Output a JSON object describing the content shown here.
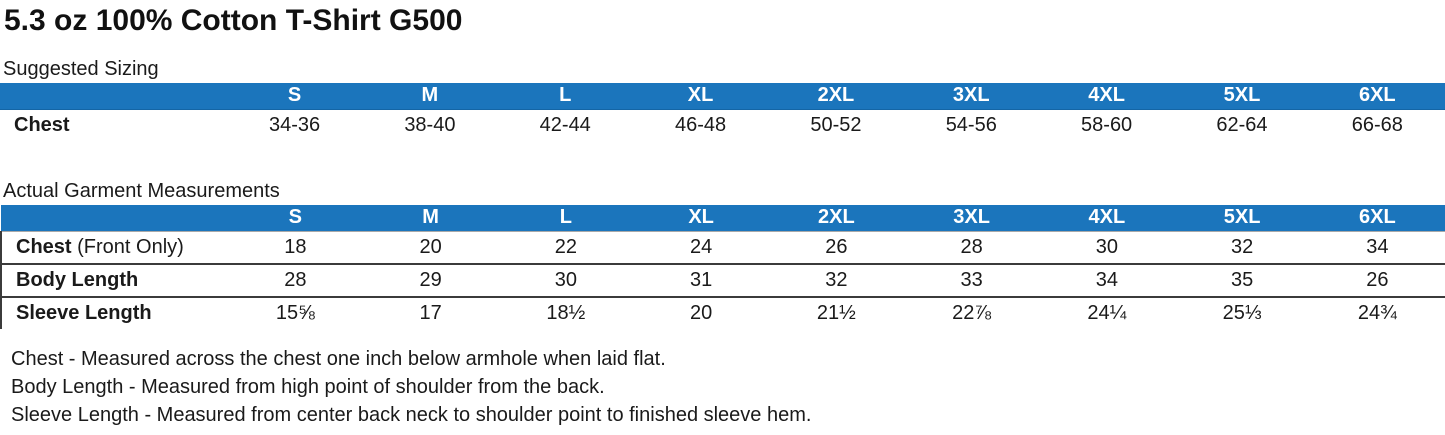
{
  "title": "5.3 oz 100% Cotton T-Shirt G500",
  "colors": {
    "header_background": "#1B75BC",
    "header_text": "#FFFFFF",
    "row_separator": "#3B3B3B",
    "body_text": "#1A1A1A"
  },
  "suggested_sizing": {
    "section_label": "Suggested Sizing",
    "sizes": [
      "S",
      "M",
      "L",
      "XL",
      "2XL",
      "3XL",
      "4XL",
      "5XL",
      "6XL"
    ],
    "rows": [
      {
        "label": "Chest",
        "label_suffix": "",
        "values": [
          "34-36",
          "38-40",
          "42-44",
          "46-48",
          "50-52",
          "54-56",
          "58-60",
          "62-64",
          "66-68"
        ]
      }
    ]
  },
  "actual_garment_measurements": {
    "section_label": "Actual Garment Measurements",
    "sizes": [
      "S",
      "M",
      "L",
      "XL",
      "2XL",
      "3XL",
      "4XL",
      "5XL",
      "6XL"
    ],
    "rows": [
      {
        "label": "Chest",
        "label_suffix": " (Front Only)",
        "values": [
          "18",
          "20",
          "22",
          "24",
          "26",
          "28",
          "30",
          "32",
          "34"
        ]
      },
      {
        "label": "Body Length",
        "label_suffix": "",
        "values": [
          "28",
          "29",
          "30",
          "31",
          "32",
          "33",
          "34",
          "35",
          "26"
        ]
      },
      {
        "label": "Sleeve Length",
        "label_suffix": "",
        "values": [
          "15⅝",
          "17",
          "18½",
          "20",
          "21½",
          "22⅞",
          "24¼",
          "25⅓",
          "24¾"
        ]
      }
    ]
  },
  "footnotes": [
    "Chest - Measured across the chest one inch below armhole when laid flat.",
    "Body Length - Measured from high point of shoulder from the back.",
    "Sleeve Length - Measured from center back neck to shoulder point to finished sleeve hem."
  ]
}
